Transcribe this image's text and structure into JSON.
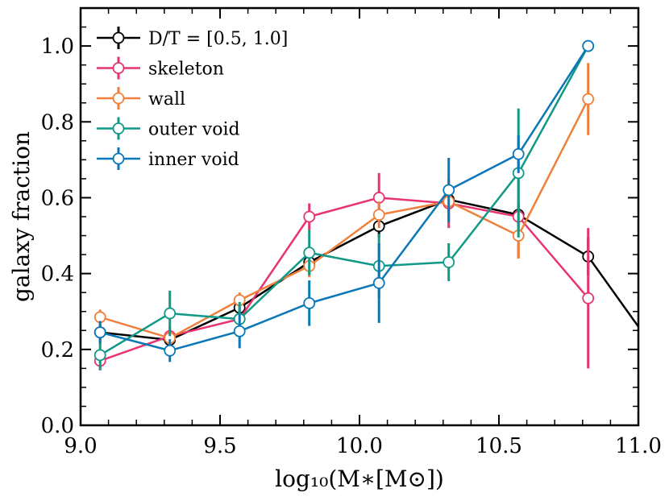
{
  "chart_data": {
    "type": "line",
    "xlabel": "log₁₀(M∗[M⊙])",
    "ylabel": "galaxy fraction",
    "xlim": [
      9.0,
      11.0
    ],
    "ylim": [
      0.0,
      1.1
    ],
    "xticks": [
      9.0,
      9.5,
      10.0,
      10.5,
      11.0
    ],
    "xtick_labels": [
      "9.0",
      "9.5",
      "10.0",
      "10.5",
      "11.0"
    ],
    "yticks": [
      0.0,
      0.2,
      0.4,
      0.6,
      0.8,
      1.0
    ],
    "ytick_labels": [
      "0.0",
      "0.2",
      "0.4",
      "0.6",
      "0.8",
      "1.0"
    ],
    "legend_position": "top-left",
    "series": [
      {
        "name": "D/T = [0.5, 1.0]",
        "color": "#000000",
        "x": [
          9.07,
          9.32,
          9.57,
          9.82,
          10.07,
          10.32,
          10.57,
          10.82,
          11.0
        ],
        "y": [
          0.245,
          0.225,
          0.31,
          0.43,
          0.525,
          0.595,
          0.555,
          0.445,
          0.26
        ],
        "err": [
          0.02,
          0.02,
          0.02,
          0.03,
          0.03,
          0.03,
          0.03,
          0.05,
          null
        ],
        "marker": [
          true,
          true,
          true,
          true,
          true,
          true,
          true,
          true,
          false
        ]
      },
      {
        "name": "skeleton",
        "color": "#e7336e",
        "x": [
          9.07,
          9.32,
          9.57,
          9.82,
          10.07,
          10.32,
          10.57,
          10.82
        ],
        "y": [
          0.17,
          0.235,
          0.28,
          0.55,
          0.6,
          0.585,
          0.55,
          0.335
        ],
        "err": [
          0.025,
          0.025,
          0.03,
          0.035,
          0.065,
          0.065,
          0.11,
          0.185
        ]
      },
      {
        "name": "wall",
        "color": "#ef7f3a",
        "x": [
          9.07,
          9.32,
          9.57,
          9.82,
          10.07,
          10.32,
          10.57,
          10.82
        ],
        "y": [
          0.285,
          0.23,
          0.33,
          0.42,
          0.555,
          0.59,
          0.5,
          0.86
        ],
        "err": [
          0.02,
          0.02,
          0.02,
          0.03,
          0.035,
          0.04,
          0.06,
          0.095
        ]
      },
      {
        "name": "outer void",
        "color": "#0f9986",
        "x": [
          9.07,
          9.32,
          9.57,
          9.82,
          10.07,
          10.32,
          10.57,
          10.82
        ],
        "y": [
          0.185,
          0.295,
          0.28,
          0.455,
          0.42,
          0.43,
          0.665,
          1.0
        ],
        "err": [
          0.04,
          0.06,
          0.045,
          0.06,
          0.085,
          0.05,
          0.17,
          0.0
        ]
      },
      {
        "name": "inner void",
        "color": "#0a77b8",
        "x": [
          9.07,
          9.32,
          9.57,
          9.82,
          10.07,
          10.32,
          10.57,
          10.82
        ],
        "y": [
          0.245,
          0.197,
          0.248,
          0.322,
          0.375,
          0.62,
          0.715,
          1.0
        ],
        "err": [
          0.03,
          0.03,
          0.045,
          0.06,
          0.105,
          0.085,
          0.05,
          0.0
        ]
      }
    ]
  }
}
